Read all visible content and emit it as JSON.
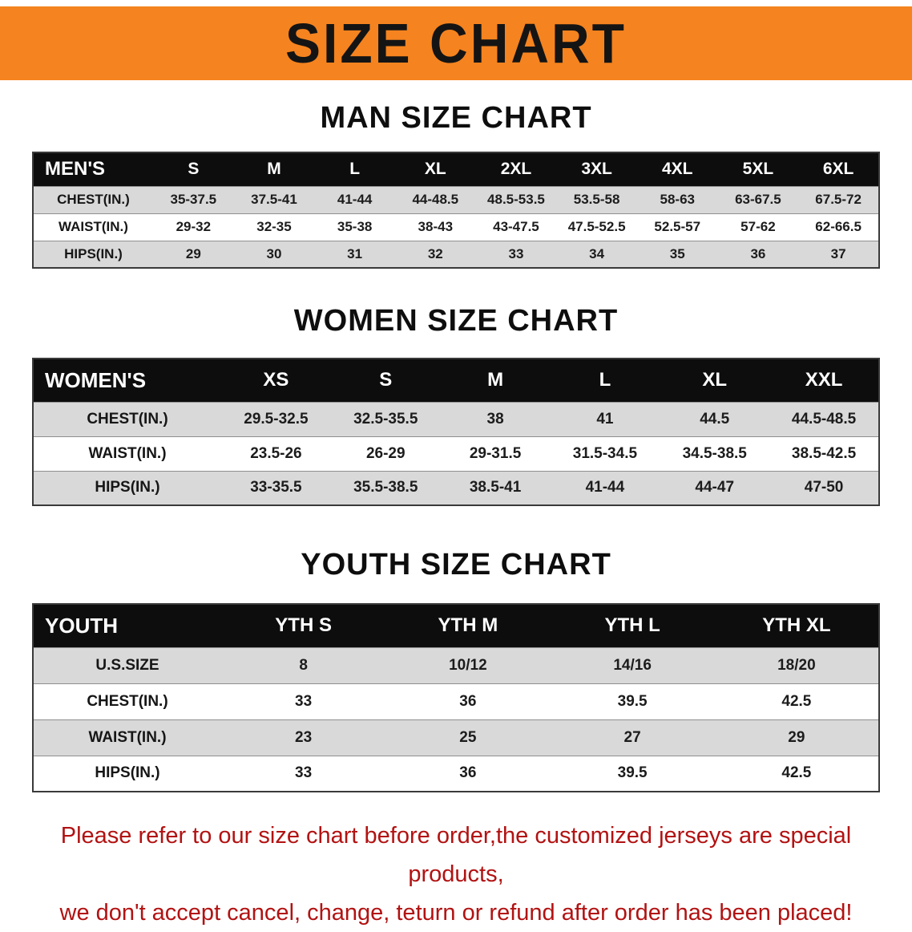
{
  "colors": {
    "banner_orange": "#f5831f",
    "header_black": "#0d0d0d",
    "row_gray": "#d9d9d9",
    "warning_red": "#b21212"
  },
  "banner": {
    "title": "SIZE CHART"
  },
  "men": {
    "heading": "MAN SIZE CHART",
    "corner": "MEN'S",
    "columns": [
      "S",
      "M",
      "L",
      "XL",
      "2XL",
      "3XL",
      "4XL",
      "5XL",
      "6XL"
    ],
    "rows": [
      {
        "label": "CHEST(IN.)",
        "values": [
          "35-37.5",
          "37.5-41",
          "41-44",
          "44-48.5",
          "48.5-53.5",
          "53.5-58",
          "58-63",
          "63-67.5",
          "67.5-72"
        ]
      },
      {
        "label": "WAIST(IN.)",
        "values": [
          "29-32",
          "32-35",
          "35-38",
          "38-43",
          "43-47.5",
          "47.5-52.5",
          "52.5-57",
          "57-62",
          "62-66.5"
        ]
      },
      {
        "label": "HIPS(IN.)",
        "values": [
          "29",
          "30",
          "31",
          "32",
          "33",
          "34",
          "35",
          "36",
          "37"
        ]
      }
    ]
  },
  "women": {
    "heading": "WOMEN SIZE CHART",
    "corner": "WOMEN'S",
    "columns": [
      "XS",
      "S",
      "M",
      "L",
      "XL",
      "XXL"
    ],
    "rows": [
      {
        "label": "CHEST(IN.)",
        "values": [
          "29.5-32.5",
          "32.5-35.5",
          "38",
          "41",
          "44.5",
          "44.5-48.5"
        ]
      },
      {
        "label": "WAIST(IN.)",
        "values": [
          "23.5-26",
          "26-29",
          "29-31.5",
          "31.5-34.5",
          "34.5-38.5",
          "38.5-42.5"
        ]
      },
      {
        "label": "HIPS(IN.)",
        "values": [
          "33-35.5",
          "35.5-38.5",
          "38.5-41",
          "41-44",
          "44-47",
          "47-50"
        ]
      }
    ]
  },
  "youth": {
    "heading": "YOUTH SIZE CHART",
    "corner": "YOUTH",
    "columns": [
      "YTH S",
      "YTH M",
      "YTH L",
      "YTH XL"
    ],
    "rows": [
      {
        "label": "U.S.SIZE",
        "values": [
          "8",
          "10/12",
          "14/16",
          "18/20"
        ]
      },
      {
        "label": "CHEST(IN.)",
        "values": [
          "33",
          "36",
          "39.5",
          "42.5"
        ]
      },
      {
        "label": "WAIST(IN.)",
        "values": [
          "23",
          "25",
          "27",
          "29"
        ]
      },
      {
        "label": "HIPS(IN.)",
        "values": [
          "33",
          "36",
          "39.5",
          "42.5"
        ]
      }
    ]
  },
  "footer": {
    "line1": "Please refer to our size chart before order,the customized jerseys are special products,",
    "line2": "we don't accept cancel, change, teturn or refund after order has been placed!"
  }
}
